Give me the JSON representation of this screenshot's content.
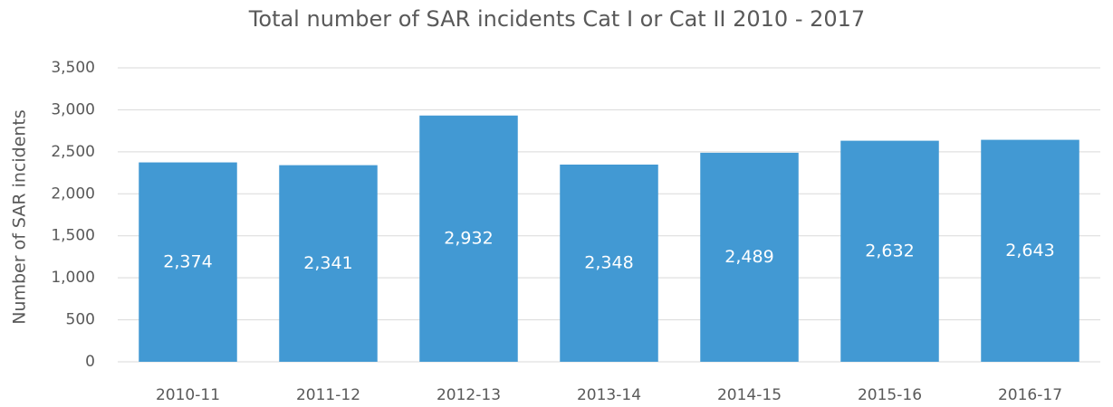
{
  "chart_data": {
    "type": "bar",
    "title": "Total number of SAR incidents Cat I or Cat II 2010 - 2017",
    "y_label": "Number of SAR incidents",
    "categories": [
      "2010-11",
      "2011-12",
      "2012-13",
      "2013-14",
      "2014-15",
      "2015-16",
      "2016-17"
    ],
    "values": [
      2374,
      2341,
      2932,
      2348,
      2489,
      2632,
      2643
    ],
    "value_labels": [
      "2,374",
      "2,341",
      "2,932",
      "2,348",
      "2,489",
      "2,632",
      "2,643"
    ],
    "color": "#4299d3",
    "ylim": [
      0,
      3500
    ],
    "yticks": [
      0,
      500,
      {
        "value": 1000,
        "label": "1,000"
      },
      {
        "value": 1500,
        "label": "1,500"
      },
      {
        "value": 2000,
        "label": "2,000"
      },
      {
        "value": 2500,
        "label": "2,500"
      },
      {
        "value": 3000,
        "label": "3,000"
      },
      {
        "value": 3500,
        "label": "3,500"
      }
    ],
    "grid": true
  }
}
